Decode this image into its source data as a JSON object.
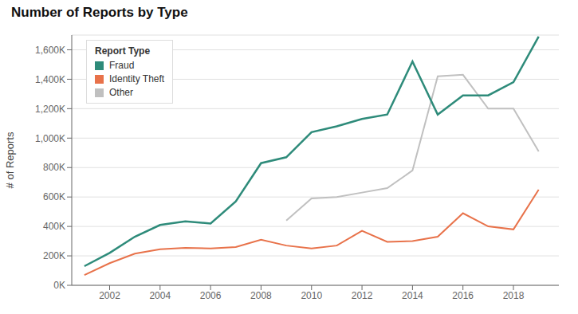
{
  "chart_data": {
    "type": "line",
    "title": "Number of Reports by Type",
    "y_label": "# of Reports",
    "legend_title": "Report Type",
    "x": [
      2001,
      2002,
      2003,
      2004,
      2005,
      2006,
      2007,
      2008,
      2009,
      2010,
      2011,
      2012,
      2013,
      2014,
      2015,
      2016,
      2017,
      2018,
      2019
    ],
    "series": [
      {
        "name": "Fraud",
        "color": "#2e8b7a",
        "values": [
          130000,
          220000,
          330000,
          410000,
          435000,
          420000,
          570000,
          830000,
          870000,
          1040000,
          1080000,
          1130000,
          1160000,
          1520000,
          1160000,
          1290000,
          1290000,
          1380000,
          1690000
        ]
      },
      {
        "name": "Identity Theft",
        "color": "#e8724a",
        "values": [
          70000,
          150000,
          215000,
          245000,
          255000,
          250000,
          260000,
          310000,
          270000,
          250000,
          270000,
          370000,
          295000,
          300000,
          330000,
          490000,
          400000,
          380000,
          650000
        ]
      },
      {
        "name": "Other",
        "color": "#c0c0c0",
        "values": [
          null,
          null,
          null,
          null,
          null,
          null,
          null,
          null,
          440000,
          590000,
          600000,
          630000,
          660000,
          780000,
          1420000,
          1430000,
          1200000,
          1200000,
          910000
        ]
      }
    ],
    "xlim": [
      2000.5,
      2019.8
    ],
    "xticks": [
      2002,
      2004,
      2006,
      2008,
      2010,
      2012,
      2014,
      2016,
      2018
    ],
    "ylim": [
      0,
      1700000
    ],
    "yticks": [
      {
        "value": 0,
        "label": "0K"
      },
      {
        "value": 200000,
        "label": "200K"
      },
      {
        "value": 400000,
        "label": "400K"
      },
      {
        "value": 600000,
        "label": "600K"
      },
      {
        "value": 800000,
        "label": "800K"
      },
      {
        "value": 1000000,
        "label": "1,000K"
      },
      {
        "value": 1200000,
        "label": "1,200K"
      },
      {
        "value": 1400000,
        "label": "1,400K"
      },
      {
        "value": 1600000,
        "label": "1,600K"
      }
    ],
    "grid": true,
    "legend": "upper left"
  }
}
